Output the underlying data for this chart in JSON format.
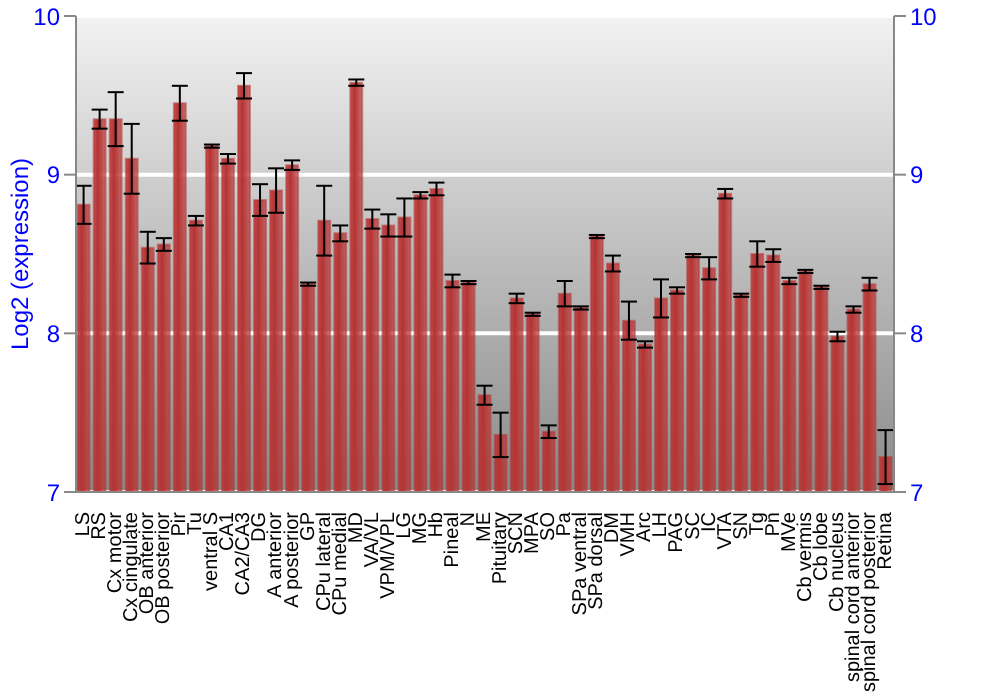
{
  "chart_data": {
    "type": "bar",
    "ylabel": "Log2 (expression)",
    "categories": [
      "LS",
      "RS",
      "Cx motor",
      "Cx cingulate",
      "OB anterior",
      "OB posterior",
      "Pir",
      "Tu",
      "ventral S",
      "CA1",
      "CA2/CA3",
      "DG",
      "A anterior",
      "A posterior",
      "GP",
      "CPu lateral",
      "CPu medial",
      "MD",
      "VA/VL",
      "VPM/VPL",
      "LG",
      "MG",
      "Hb",
      "Pineal",
      "N",
      "ME",
      "Pituitary",
      "SCN",
      "MPA",
      "SO",
      "Pa",
      "SPa ventral",
      "SPa dorsal",
      "DM",
      "VMH",
      "Arc",
      "LH",
      "PAG",
      "SC",
      "IC",
      "VTA",
      "SN",
      "Tg",
      "Pn",
      "MVe",
      "Cb vermis",
      "Cb lobe",
      "Cb nucleus",
      "spinal cord anterior",
      "spinal cord posterior",
      "Retina"
    ],
    "values": [
      8.81,
      9.35,
      9.35,
      9.1,
      8.54,
      8.56,
      9.45,
      8.71,
      9.18,
      9.1,
      9.56,
      8.84,
      8.9,
      9.06,
      8.31,
      8.71,
      8.63,
      9.58,
      8.72,
      8.68,
      8.73,
      8.87,
      8.91,
      8.33,
      8.32,
      7.61,
      7.36,
      8.22,
      8.12,
      7.38,
      8.25,
      8.16,
      8.61,
      8.44,
      8.08,
      7.93,
      8.22,
      8.27,
      8.49,
      8.41,
      8.88,
      8.24,
      8.5,
      8.49,
      8.33,
      8.39,
      8.29,
      7.98,
      8.15,
      8.31,
      7.22
    ],
    "errors": [
      0.12,
      0.06,
      0.17,
      0.22,
      0.1,
      0.04,
      0.11,
      0.03,
      0.01,
      0.03,
      0.08,
      0.1,
      0.14,
      0.03,
      0.01,
      0.22,
      0.05,
      0.02,
      0.06,
      0.07,
      0.12,
      0.02,
      0.04,
      0.04,
      0.01,
      0.06,
      0.14,
      0.03,
      0.01,
      0.04,
      0.08,
      0.01,
      0.01,
      0.05,
      0.12,
      0.02,
      0.12,
      0.02,
      0.01,
      0.07,
      0.03,
      0.01,
      0.08,
      0.04,
      0.02,
      0.01,
      0.01,
      0.03,
      0.02,
      0.04,
      0.17
    ],
    "color": "#b83232",
    "ylim": [
      7,
      10
    ],
    "yticks": [
      7,
      8,
      9,
      10
    ],
    "y2lim": [
      7,
      10
    ],
    "y2ticks": [
      7,
      8,
      9,
      10
    ],
    "grid": "y"
  }
}
